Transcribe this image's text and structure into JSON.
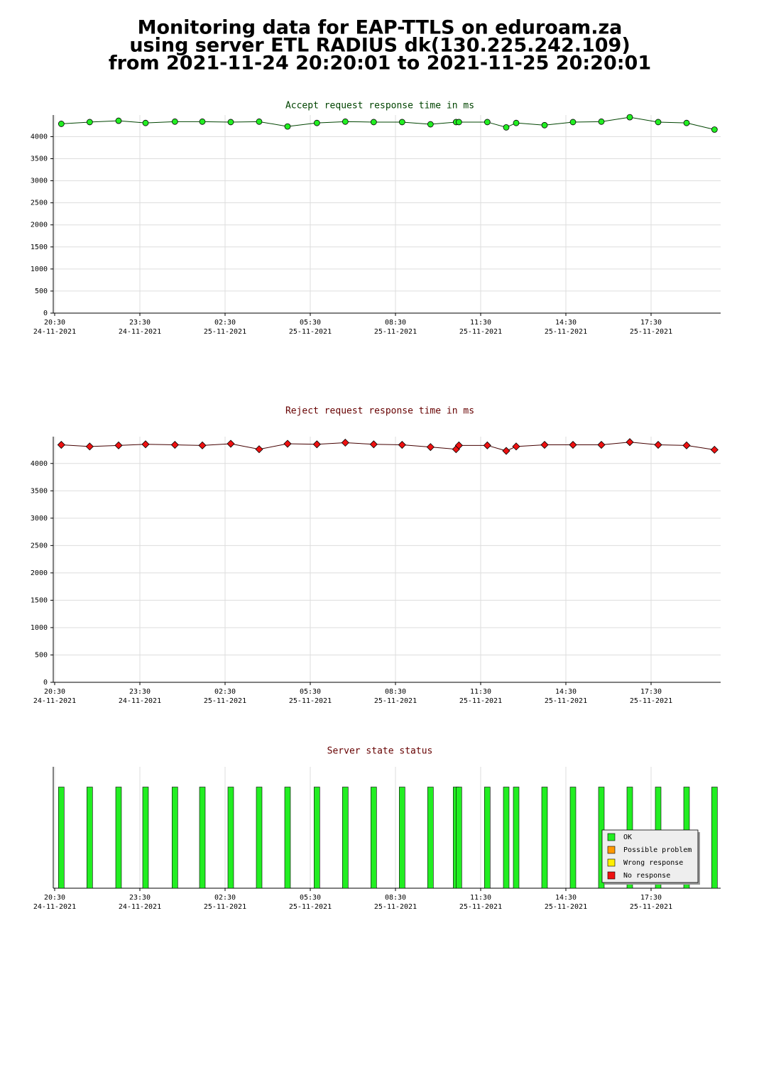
{
  "title": [
    "Monitoring data for EAP-TTLS on eduroam.za",
    "using server ETL RADIUS dk(130.225.242.109)",
    "from 2021-11-24 20:20:01 to 2021-11-25 20:20:01"
  ],
  "chart_data": [
    {
      "type": "line",
      "title": "Accept request response time in ms",
      "title_color": "#004400",
      "marker": "circle",
      "grid": true,
      "x": [
        "2021-11-24 20:44",
        "2021-11-24 21:44",
        "2021-11-24 22:45",
        "2021-11-24 23:42",
        "2021-11-25 00:44",
        "2021-11-25 01:42",
        "2021-11-25 02:42",
        "2021-11-25 03:42",
        "2021-11-25 04:42",
        "2021-11-25 05:44",
        "2021-11-25 06:44",
        "2021-11-25 07:44",
        "2021-11-25 08:44",
        "2021-11-25 09:44",
        "2021-11-25 10:38",
        "2021-11-25 10:44",
        "2021-11-25 11:44",
        "2021-11-25 12:24",
        "2021-11-25 12:45",
        "2021-11-25 13:45",
        "2021-11-25 14:45",
        "2021-11-25 15:45",
        "2021-11-25 16:45",
        "2021-11-25 17:45",
        "2021-11-25 18:45",
        "2021-11-25 19:44"
      ],
      "series": [
        {
          "color": "#22ee22",
          "line_color": "#004400",
          "values": [
            4290,
            4330,
            4360,
            4310,
            4340,
            4340,
            4330,
            4340,
            4230,
            4310,
            4340,
            4330,
            4330,
            4280,
            4330,
            4330,
            4330,
            4210,
            4310,
            4260,
            4330,
            4340,
            4440,
            4330,
            4310,
            4160
          ]
        }
      ],
      "xlim": [
        "2021-11-24 20:27",
        "2021-11-25 19:57"
      ],
      "xticks": [
        {
          "value": "2021-11-24 20:30",
          "label": [
            "20:30",
            "24-11-2021"
          ]
        },
        {
          "value": "2021-11-24 23:30",
          "label": [
            "23:30",
            "24-11-2021"
          ]
        },
        {
          "value": "2021-11-25 02:30",
          "label": [
            "02:30",
            "25-11-2021"
          ]
        },
        {
          "value": "2021-11-25 05:30",
          "label": [
            "05:30",
            "25-11-2021"
          ]
        },
        {
          "value": "2021-11-25 08:30",
          "label": [
            "08:30",
            "25-11-2021"
          ]
        },
        {
          "value": "2021-11-25 11:30",
          "label": [
            "11:30",
            "25-11-2021"
          ]
        },
        {
          "value": "2021-11-25 14:30",
          "label": [
            "14:30",
            "25-11-2021"
          ]
        },
        {
          "value": "2021-11-25 17:30",
          "label": [
            "17:30",
            "25-11-2021"
          ]
        }
      ],
      "ylim": [
        0,
        4490
      ],
      "yticks": [
        0,
        500,
        1000,
        1500,
        2000,
        2500,
        3000,
        3500,
        4000
      ]
    },
    {
      "type": "line",
      "title": "Reject request response time in ms",
      "title_color": "#660000",
      "marker": "diamond",
      "grid": true,
      "x": [
        "2021-11-24 20:44",
        "2021-11-24 21:44",
        "2021-11-24 22:45",
        "2021-11-24 23:42",
        "2021-11-25 00:44",
        "2021-11-25 01:42",
        "2021-11-25 02:42",
        "2021-11-25 03:42",
        "2021-11-25 04:42",
        "2021-11-25 05:44",
        "2021-11-25 06:44",
        "2021-11-25 07:44",
        "2021-11-25 08:44",
        "2021-11-25 09:44",
        "2021-11-25 10:38",
        "2021-11-25 10:44",
        "2021-11-25 11:44",
        "2021-11-25 12:24",
        "2021-11-25 12:45",
        "2021-11-25 13:45",
        "2021-11-25 14:45",
        "2021-11-25 15:45",
        "2021-11-25 16:45",
        "2021-11-25 17:45",
        "2021-11-25 18:45",
        "2021-11-25 19:44"
      ],
      "series": [
        {
          "color": "#ee1111",
          "line_color": "#440000",
          "values": [
            4340,
            4310,
            4330,
            4350,
            4340,
            4330,
            4360,
            4260,
            4360,
            4350,
            4380,
            4350,
            4340,
            4300,
            4260,
            4330,
            4330,
            4230,
            4310,
            4340,
            4340,
            4340,
            4390,
            4340,
            4330,
            4250
          ]
        }
      ],
      "xlim": [
        "2021-11-24 20:27",
        "2021-11-25 19:57"
      ],
      "xticks": [
        {
          "value": "2021-11-24 20:30",
          "label": [
            "20:30",
            "24-11-2021"
          ]
        },
        {
          "value": "2021-11-24 23:30",
          "label": [
            "23:30",
            "24-11-2021"
          ]
        },
        {
          "value": "2021-11-25 02:30",
          "label": [
            "02:30",
            "25-11-2021"
          ]
        },
        {
          "value": "2021-11-25 05:30",
          "label": [
            "05:30",
            "25-11-2021"
          ]
        },
        {
          "value": "2021-11-25 08:30",
          "label": [
            "08:30",
            "25-11-2021"
          ]
        },
        {
          "value": "2021-11-25 11:30",
          "label": [
            "11:30",
            "25-11-2021"
          ]
        },
        {
          "value": "2021-11-25 14:30",
          "label": [
            "14:30",
            "25-11-2021"
          ]
        },
        {
          "value": "2021-11-25 17:30",
          "label": [
            "17:30",
            "25-11-2021"
          ]
        }
      ],
      "ylim": [
        0,
        4490
      ],
      "yticks": [
        0,
        500,
        1000,
        1500,
        2000,
        2500,
        3000,
        3500,
        4000
      ]
    },
    {
      "type": "bar",
      "title": "Server state status",
      "title_color": "#660000",
      "grid": true,
      "legend": "lower right",
      "x": [
        "2021-11-24 20:44",
        "2021-11-24 21:44",
        "2021-11-24 22:45",
        "2021-11-24 23:42",
        "2021-11-25 00:44",
        "2021-11-25 01:42",
        "2021-11-25 02:42",
        "2021-11-25 03:42",
        "2021-11-25 04:42",
        "2021-11-25 05:44",
        "2021-11-25 06:44",
        "2021-11-25 07:44",
        "2021-11-25 08:44",
        "2021-11-25 09:44",
        "2021-11-25 10:38",
        "2021-11-25 10:44",
        "2021-11-25 11:44",
        "2021-11-25 12:24",
        "2021-11-25 12:45",
        "2021-11-25 13:45",
        "2021-11-25 14:45",
        "2021-11-25 15:45",
        "2021-11-25 16:45",
        "2021-11-25 17:45",
        "2021-11-25 18:45",
        "2021-11-25 19:44"
      ],
      "series": [
        {
          "name": "OK",
          "color": "#22ee22",
          "values": [
            1,
            1,
            1,
            1,
            1,
            1,
            1,
            1,
            1,
            1,
            1,
            1,
            1,
            1,
            1,
            1,
            1,
            1,
            1,
            1,
            1,
            1,
            1,
            1,
            1,
            1
          ]
        },
        {
          "name": "Possible problem",
          "color": "#ff9900",
          "values": [
            0,
            0,
            0,
            0,
            0,
            0,
            0,
            0,
            0,
            0,
            0,
            0,
            0,
            0,
            0,
            0,
            0,
            0,
            0,
            0,
            0,
            0,
            0,
            0,
            0,
            0
          ]
        },
        {
          "name": "Wrong response",
          "color": "#ffee00",
          "values": [
            0,
            0,
            0,
            0,
            0,
            0,
            0,
            0,
            0,
            0,
            0,
            0,
            0,
            0,
            0,
            0,
            0,
            0,
            0,
            0,
            0,
            0,
            0,
            0,
            0,
            0
          ]
        },
        {
          "name": "No response",
          "color": "#ee1111",
          "values": [
            0,
            0,
            0,
            0,
            0,
            0,
            0,
            0,
            0,
            0,
            0,
            0,
            0,
            0,
            0,
            0,
            0,
            0,
            0,
            0,
            0,
            0,
            0,
            0,
            0,
            0
          ]
        }
      ],
      "xlim": [
        "2021-11-24 20:27",
        "2021-11-25 19:57"
      ],
      "xticks": [
        {
          "value": "2021-11-24 20:30",
          "label": [
            "20:30",
            "24-11-2021"
          ]
        },
        {
          "value": "2021-11-24 23:30",
          "label": [
            "23:30",
            "24-11-2021"
          ]
        },
        {
          "value": "2021-11-25 02:30",
          "label": [
            "02:30",
            "25-11-2021"
          ]
        },
        {
          "value": "2021-11-25 05:30",
          "label": [
            "05:30",
            "25-11-2021"
          ]
        },
        {
          "value": "2021-11-25 08:30",
          "label": [
            "08:30",
            "25-11-2021"
          ]
        },
        {
          "value": "2021-11-25 11:30",
          "label": [
            "11:30",
            "25-11-2021"
          ]
        },
        {
          "value": "2021-11-25 14:30",
          "label": [
            "14:30",
            "25-11-2021"
          ]
        },
        {
          "value": "2021-11-25 17:30",
          "label": [
            "17:30",
            "25-11-2021"
          ]
        }
      ],
      "ylim": [
        0,
        1.2
      ]
    }
  ]
}
